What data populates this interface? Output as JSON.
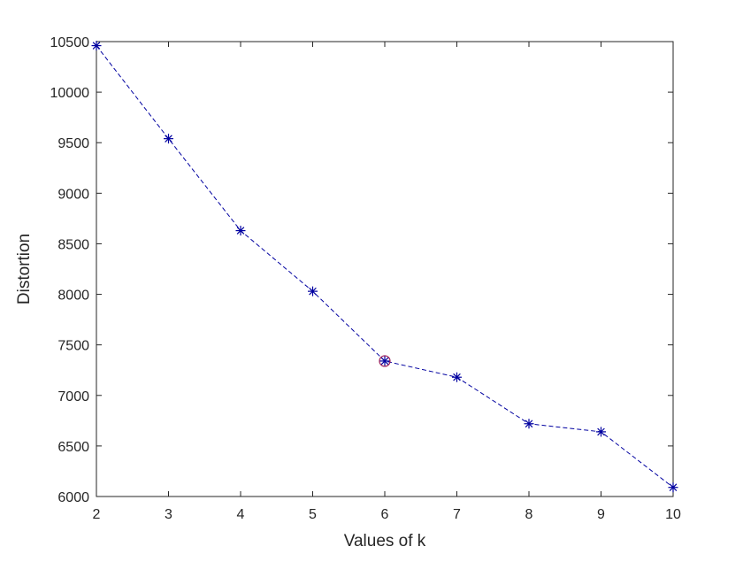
{
  "chart_data": {
    "type": "line",
    "title": "",
    "xlabel": "Values of k",
    "ylabel": "Distortion",
    "xlim": [
      2,
      10
    ],
    "ylim": [
      6000,
      10500
    ],
    "x_ticks": [
      2,
      3,
      4,
      5,
      6,
      7,
      8,
      9,
      10
    ],
    "y_ticks": [
      6000,
      6500,
      7000,
      7500,
      8000,
      8500,
      9000,
      9500,
      10000,
      10500
    ],
    "grid": false,
    "legend": "none",
    "series": [
      {
        "x": [
          2,
          3,
          4,
          5,
          6,
          7,
          8,
          9,
          10
        ],
        "values": [
          10460,
          9540,
          8630,
          8030,
          7340,
          7180,
          6720,
          6640,
          6090
        ],
        "color": "#0000a0",
        "line_style": "dashed",
        "marker": "asterisk"
      }
    ],
    "highlight": {
      "x": 6,
      "y": 7340,
      "marker": "circle",
      "color": "#a0205a"
    }
  }
}
